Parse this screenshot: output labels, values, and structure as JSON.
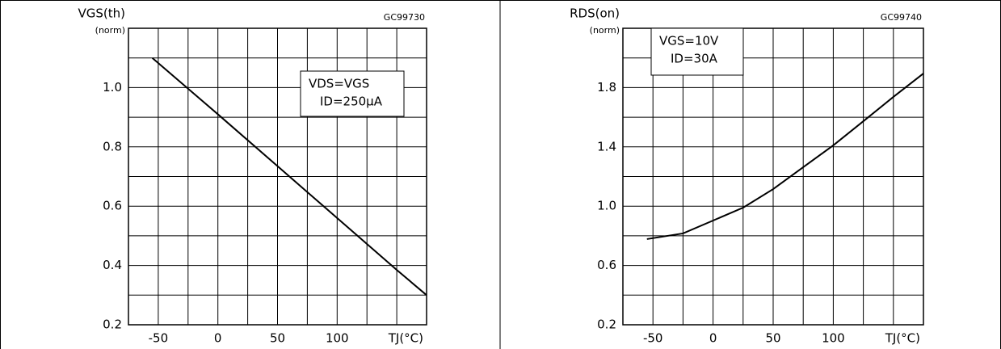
{
  "chart_data": [
    {
      "type": "line",
      "code": "GC99730",
      "ylabel": "VGS(th)",
      "yunit": "(norm)",
      "xlabel": "TJ(°C)",
      "annotation": [
        "VDS=VGS",
        "ID=250μA"
      ],
      "x": [
        -55,
        0,
        50,
        100,
        150,
        175
      ],
      "values": [
        1.1,
        0.91,
        0.735,
        0.56,
        0.385,
        0.3
      ],
      "color": "#000000",
      "xlim": [
        -75,
        175
      ],
      "xticks": [
        -50,
        0,
        50,
        100
      ],
      "xgrid": [
        -50,
        -25,
        0,
        25,
        50,
        75,
        100,
        125,
        150
      ],
      "ylim": [
        0.2,
        1.2
      ],
      "yticks": [
        0.2,
        0.4,
        0.6,
        0.8,
        {
          "value": 1.0,
          "label": "1.0"
        }
      ],
      "ygrid": [
        0.3,
        0.4,
        0.5,
        0.6,
        0.7,
        0.8,
        0.9,
        1.0,
        1.1
      ],
      "grid": true
    },
    {
      "type": "line",
      "code": "GC99740",
      "ylabel": "RDS(on)",
      "yunit": "(norm)",
      "xlabel": "TJ(°C)",
      "annotation": [
        "VGS=10V",
        "ID=30A"
      ],
      "x": [
        -55,
        -25,
        0,
        25,
        50,
        75,
        100,
        125,
        150,
        175
      ],
      "values": [
        0.778,
        0.816,
        0.903,
        0.99,
        1.115,
        1.263,
        1.41,
        1.573,
        1.737,
        1.895
      ],
      "color": "#000000",
      "xlim": [
        -75,
        175
      ],
      "xticks": [
        -50,
        0,
        50,
        100
      ],
      "xgrid": [
        -50,
        -25,
        0,
        25,
        50,
        75,
        100,
        125,
        150
      ],
      "ylim": [
        0.2,
        2.2
      ],
      "yticks": [
        0.2,
        0.6,
        {
          "value": 1.0,
          "label": "1.0"
        },
        1.4,
        1.8
      ],
      "ygrid": [
        0.4,
        0.6,
        0.8,
        1.0,
        1.2,
        1.4,
        1.6,
        1.8,
        2.0
      ],
      "grid": true
    }
  ]
}
